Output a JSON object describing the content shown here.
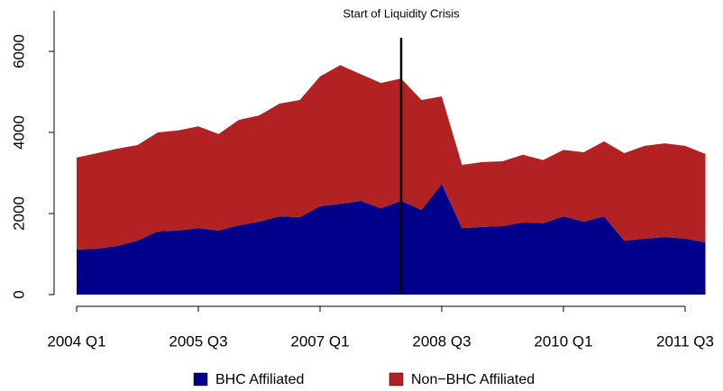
{
  "chart_data": {
    "type": "stacked_area",
    "annotations": [
      {
        "text": "Start of Liquidity Crisis",
        "x": 16
      }
    ],
    "categories": [
      "2004 Q1",
      null,
      null,
      null,
      null,
      null,
      "2005 Q3",
      null,
      null,
      null,
      null,
      null,
      "2007 Q1",
      null,
      null,
      null,
      null,
      null,
      "2008 Q3",
      null,
      null,
      null,
      null,
      null,
      "2010 Q1",
      null,
      null,
      null,
      null,
      null,
      "2011 Q3",
      null
    ],
    "series": [
      {
        "name": "BHC Affiliated",
        "color": "#00008b",
        "values": [
          1110,
          1130,
          1200,
          1330,
          1560,
          1580,
          1640,
          1580,
          1710,
          1800,
          1930,
          1910,
          2180,
          2240,
          2310,
          2130,
          2310,
          2090,
          2730,
          1640,
          1670,
          1690,
          1780,
          1760,
          1930,
          1800,
          1930,
          1330,
          1380,
          1420,
          1380,
          1290
        ]
      },
      {
        "name": "Non−BHC Affiliated",
        "color": "#b22222",
        "values": [
          2270,
          2360,
          2400,
          2360,
          2440,
          2470,
          2510,
          2380,
          2600,
          2620,
          2780,
          2890,
          3200,
          3420,
          3130,
          3090,
          3020,
          2710,
          2160,
          1560,
          1600,
          1600,
          1670,
          1560,
          1640,
          1710,
          1850,
          2160,
          2290,
          2310,
          2290,
          2180
        ]
      }
    ],
    "ylim": [
      0,
      7000
    ],
    "yticks": [
      0,
      2000,
      4000,
      6000
    ]
  }
}
